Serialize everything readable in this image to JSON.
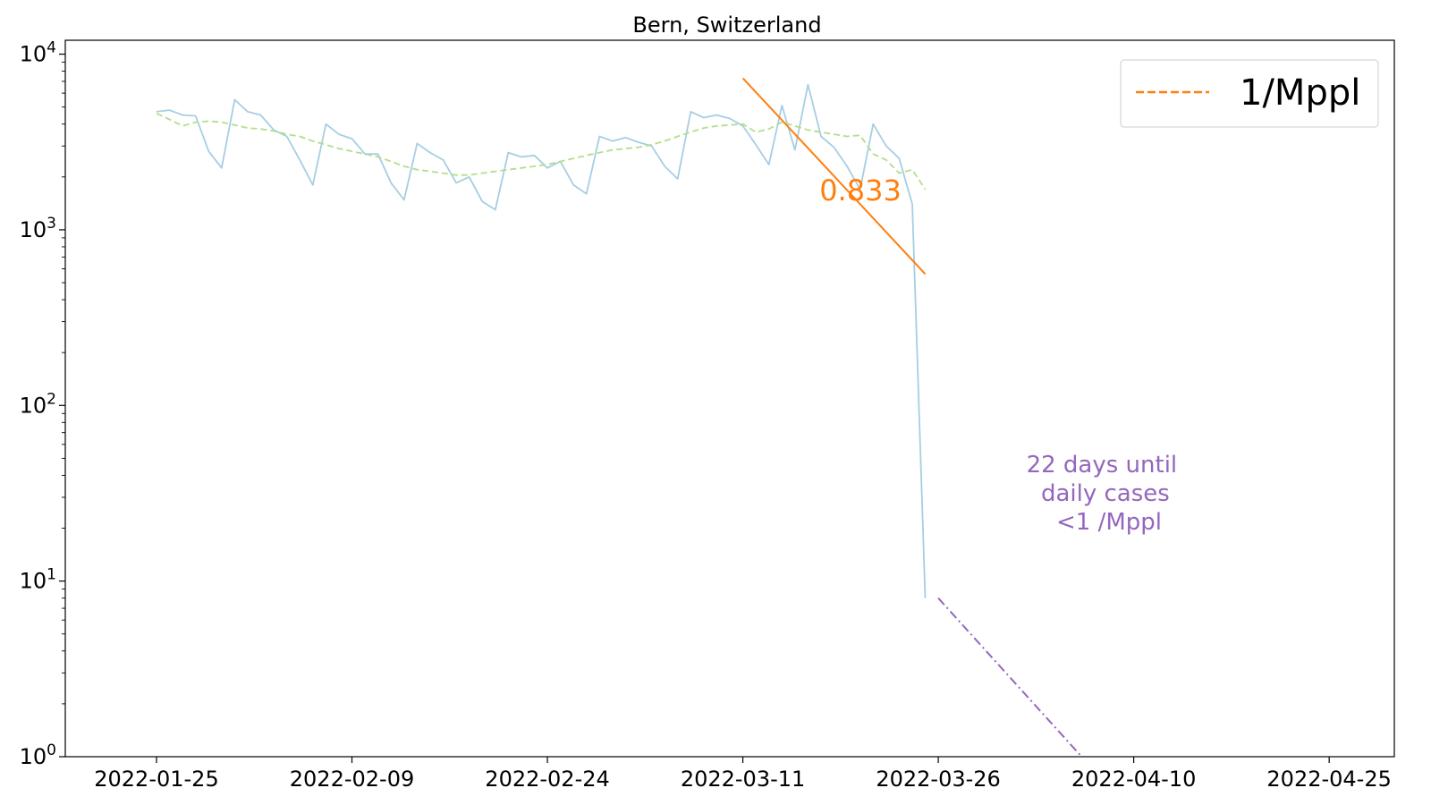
{
  "chart_data": {
    "type": "line",
    "title": "Bern, Switzerland",
    "xlabel": "",
    "ylabel": "",
    "yscale": "log",
    "ylim": [
      1,
      12000
    ],
    "xlim": [
      "2022-01-18",
      "2022-04-30"
    ],
    "grid": false,
    "legend": {
      "placement": "top-right",
      "entries": [
        {
          "label": "1/Mppl",
          "style": "dashed",
          "color": "#ff7f0e"
        }
      ]
    },
    "x_ticks": [
      "2022-01-25",
      "2022-02-09",
      "2022-02-24",
      "2022-03-11",
      "2022-03-26",
      "2022-04-10",
      "2022-04-25"
    ],
    "y_ticks": [
      {
        "value": 1,
        "base": "10",
        "exp": "0"
      },
      {
        "value": 10,
        "base": "10",
        "exp": "1"
      },
      {
        "value": 100,
        "base": "10",
        "exp": "2"
      },
      {
        "value": 1000,
        "base": "10",
        "exp": "3"
      },
      {
        "value": 10000,
        "base": "10",
        "exp": "4"
      }
    ],
    "start_date": "2022-01-25",
    "series": [
      {
        "name": "",
        "role": "daily",
        "color": "#a6cee3",
        "style": "solid",
        "values": [
          4700,
          4800,
          4500,
          4450,
          2800,
          2250,
          5500,
          4700,
          4500,
          3700,
          3400,
          2500,
          1800,
          4000,
          3500,
          3300,
          2700,
          2700,
          1850,
          1480,
          3100,
          2750,
          2500,
          1850,
          2000,
          1450,
          1300,
          2750,
          2600,
          2650,
          2250,
          2450,
          1800,
          1600,
          3400,
          3200,
          3350,
          3150,
          3000,
          2300,
          1950,
          4700,
          4350,
          4500,
          4300,
          3900,
          3050,
          2350,
          5100,
          2850,
          6700,
          3400,
          2950,
          2300,
          1700,
          4000,
          3000,
          2550,
          1400,
          8
        ]
      },
      {
        "name": "",
        "role": "7-day average",
        "color": "#b2df8a",
        "style": "dashed",
        "values": [
          4600,
          4250,
          3900,
          4100,
          4150,
          4100,
          3950,
          3800,
          3750,
          3650,
          3500,
          3400,
          3200,
          3050,
          2900,
          2800,
          2700,
          2600,
          2450,
          2300,
          2200,
          2150,
          2100,
          2050,
          2050,
          2100,
          2150,
          2200,
          2250,
          2300,
          2350,
          2450,
          2550,
          2650,
          2750,
          2850,
          2900,
          2950,
          3050,
          3200,
          3400,
          3600,
          3800,
          3900,
          3950,
          4000,
          3600,
          3750,
          4100,
          3900,
          3700,
          3600,
          3500,
          3400,
          3450,
          2700,
          2500,
          2100,
          2200,
          1700
        ]
      },
      {
        "name": "1/Mppl",
        "role": "fit",
        "color": "#ff7f0e",
        "style": "solid",
        "points": [
          {
            "x": "2022-03-11",
            "y": 7300
          },
          {
            "x": "2022-03-25",
            "y": 560
          }
        ]
      },
      {
        "name": "",
        "role": "projection",
        "color": "#9467bd",
        "style": "dashdot",
        "points": [
          {
            "x": "2022-03-26",
            "y": 8
          },
          {
            "x": "2022-04-06",
            "y": 1
          }
        ]
      }
    ],
    "annotations": {
      "slope": "0.833",
      "note_lines": [
        "22 days until",
        "daily cases",
        "<1 /Mppl"
      ]
    }
  }
}
